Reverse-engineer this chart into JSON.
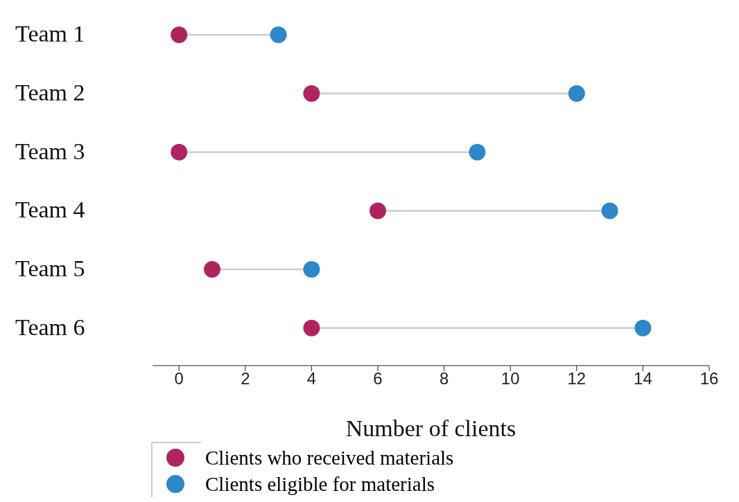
{
  "chart_data": {
    "type": "scatter",
    "orientation": "horizontal",
    "categories": [
      "Team 1",
      "Team 2",
      "Team 3",
      "Team 4",
      "Team 5",
      "Team 6"
    ],
    "series": [
      {
        "name": "Clients who received materials",
        "color": "#b0245e",
        "values": [
          0,
          4,
          0,
          6,
          1,
          4
        ]
      },
      {
        "name": "Clients eligible for materials",
        "color": "#2e87c9",
        "values": [
          3,
          12,
          9,
          13,
          4,
          14
        ]
      }
    ],
    "xlabel": "Number of clients",
    "xlim": [
      -0.8,
      16
    ],
    "xticks": [
      0,
      2,
      4,
      6,
      8,
      10,
      12,
      14,
      16
    ],
    "legend": "bottom",
    "marker": "circle"
  }
}
